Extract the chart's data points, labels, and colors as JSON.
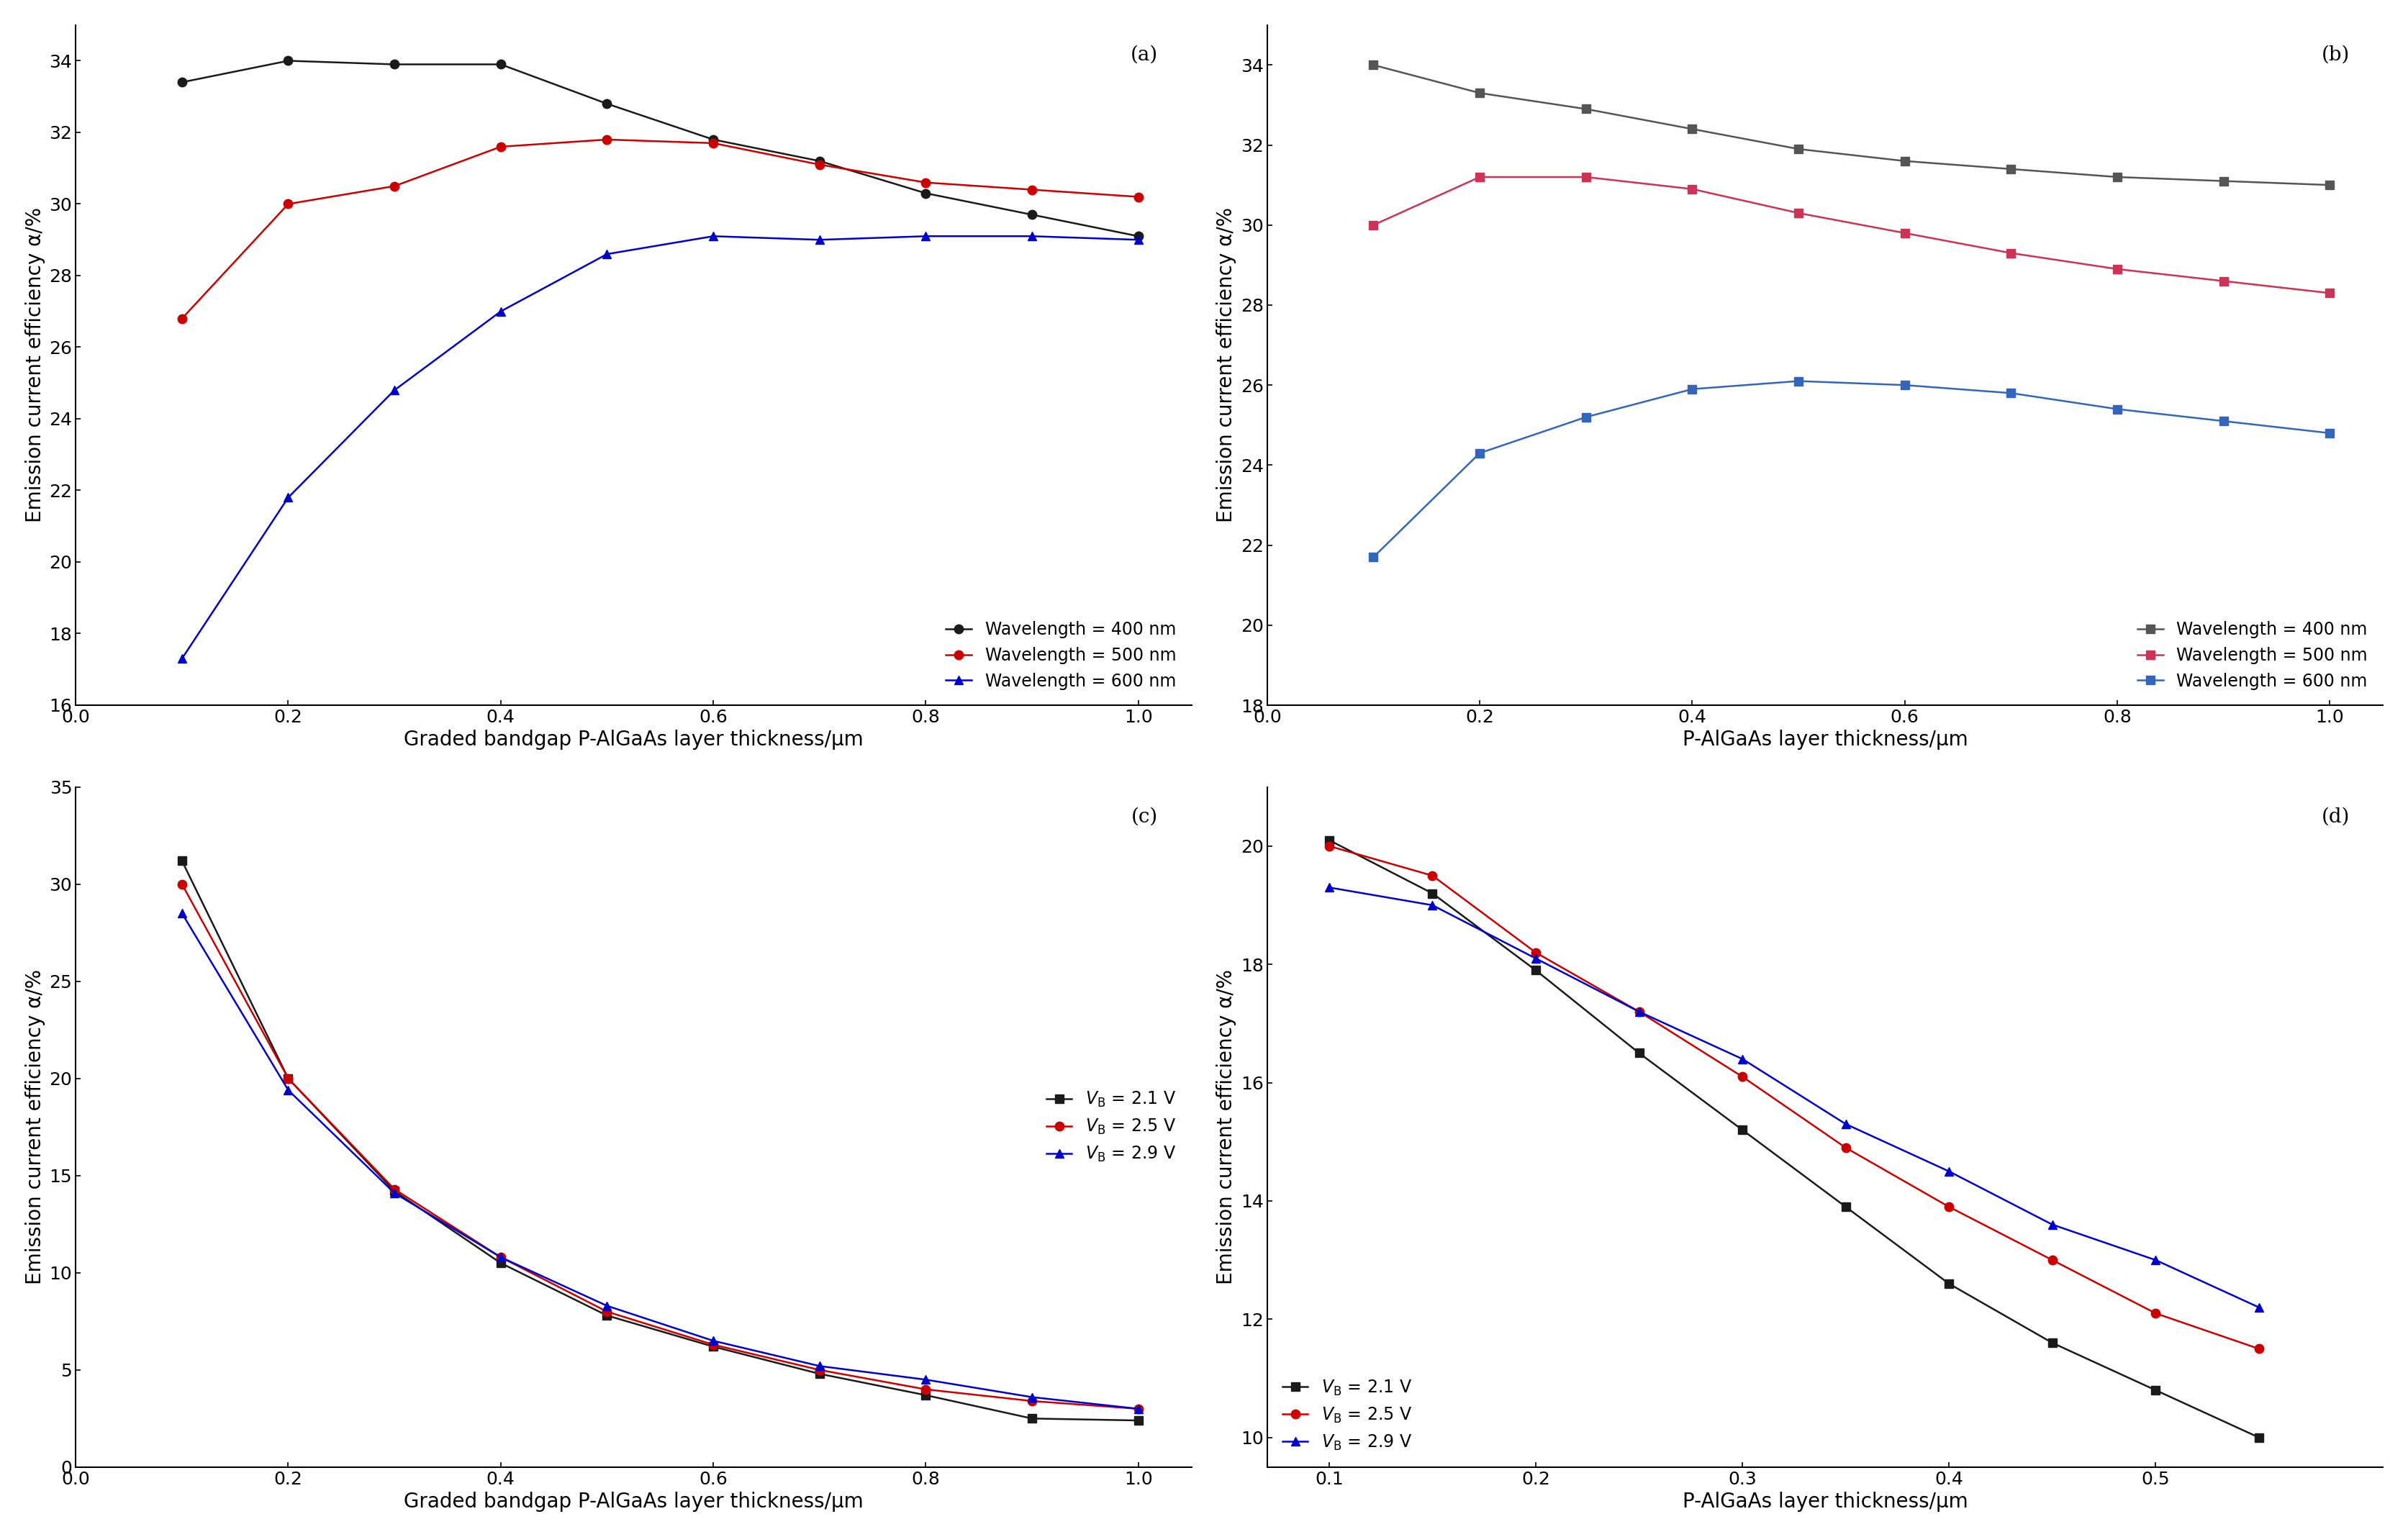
{
  "panel_a": {
    "title": "(a)",
    "xlabel": "Graded bandgap P-AlGaAs layer thickness/μm",
    "ylabel": "Emission current efficiency α/%",
    "xlim": [
      0,
      1.05
    ],
    "ylim": [
      16,
      35
    ],
    "xticks": [
      0.0,
      0.2,
      0.4,
      0.6,
      0.8,
      1.0
    ],
    "yticks": [
      16,
      18,
      20,
      22,
      24,
      26,
      28,
      30,
      32,
      34
    ],
    "legend_loc": "lower right",
    "series": [
      {
        "label": "Wavelength = 400 nm",
        "color": "#1a1a1a",
        "marker": "o",
        "x": [
          0.1,
          0.2,
          0.3,
          0.4,
          0.5,
          0.6,
          0.7,
          0.8,
          0.9,
          1.0
        ],
        "y": [
          33.4,
          34.0,
          33.9,
          33.9,
          32.8,
          31.8,
          31.2,
          30.3,
          29.7,
          29.1
        ]
      },
      {
        "label": "Wavelength = 500 nm",
        "color": "#cc0000",
        "marker": "o",
        "x": [
          0.1,
          0.2,
          0.3,
          0.4,
          0.5,
          0.6,
          0.7,
          0.8,
          0.9,
          1.0
        ],
        "y": [
          26.8,
          30.0,
          30.5,
          31.6,
          31.8,
          31.7,
          31.1,
          30.6,
          30.4,
          30.2
        ]
      },
      {
        "label": "Wavelength = 600 nm",
        "color": "#0000cc",
        "marker": "^",
        "x": [
          0.1,
          0.2,
          0.3,
          0.4,
          0.5,
          0.6,
          0.7,
          0.8,
          0.9,
          1.0
        ],
        "y": [
          17.3,
          21.8,
          24.8,
          27.0,
          28.6,
          29.1,
          29.0,
          29.1,
          29.1,
          29.0
        ]
      }
    ]
  },
  "panel_b": {
    "title": "(b)",
    "xlabel": "P-AlGaAs layer thickness/μm",
    "ylabel": "Emission current efficiency α/%",
    "xlim": [
      0,
      1.05
    ],
    "ylim": [
      18,
      35
    ],
    "xticks": [
      0.0,
      0.2,
      0.4,
      0.6,
      0.8,
      1.0
    ],
    "yticks": [
      18,
      20,
      22,
      24,
      26,
      28,
      30,
      32,
      34
    ],
    "legend_loc": "lower right",
    "series": [
      {
        "label": "Wavelength = 400 nm",
        "color": "#555555",
        "marker": "s",
        "x": [
          0.1,
          0.2,
          0.3,
          0.4,
          0.5,
          0.6,
          0.7,
          0.8,
          0.9,
          1.0
        ],
        "y": [
          34.0,
          33.3,
          32.9,
          32.4,
          31.9,
          31.6,
          31.4,
          31.2,
          31.1,
          31.0
        ]
      },
      {
        "label": "Wavelength = 500 nm",
        "color": "#cc3355",
        "marker": "s",
        "x": [
          0.1,
          0.2,
          0.3,
          0.4,
          0.5,
          0.6,
          0.7,
          0.8,
          0.9,
          1.0
        ],
        "y": [
          30.0,
          31.2,
          31.2,
          30.9,
          30.3,
          29.8,
          29.3,
          28.9,
          28.6,
          28.3
        ]
      },
      {
        "label": "Wavelength = 600 nm",
        "color": "#3366bb",
        "marker": "s",
        "x": [
          0.1,
          0.2,
          0.3,
          0.4,
          0.5,
          0.6,
          0.7,
          0.8,
          0.9,
          1.0
        ],
        "y": [
          21.7,
          24.3,
          25.2,
          25.9,
          26.1,
          26.0,
          25.8,
          25.4,
          25.1,
          24.8
        ]
      }
    ]
  },
  "panel_c": {
    "title": "(c)",
    "xlabel": "Graded bandgap P-AlGaAs layer thickness/μm",
    "ylabel": "Emission current efficiency α/%",
    "xlim": [
      0,
      1.05
    ],
    "ylim": [
      0,
      35
    ],
    "xticks": [
      0.0,
      0.2,
      0.4,
      0.6,
      0.8,
      1.0
    ],
    "yticks": [
      0,
      5,
      10,
      15,
      20,
      25,
      30,
      35
    ],
    "legend_loc": "center right",
    "series": [
      {
        "label": "VB_2.1",
        "color": "#1a1a1a",
        "marker": "s",
        "x": [
          0.1,
          0.2,
          0.3,
          0.4,
          0.5,
          0.6,
          0.7,
          0.8,
          0.9,
          1.0
        ],
        "y": [
          31.2,
          20.0,
          14.2,
          10.5,
          7.8,
          6.2,
          4.8,
          3.7,
          2.5,
          2.4
        ]
      },
      {
        "label": "VB_2.5",
        "color": "#cc0000",
        "marker": "o",
        "x": [
          0.1,
          0.2,
          0.3,
          0.4,
          0.5,
          0.6,
          0.7,
          0.8,
          0.9,
          1.0
        ],
        "y": [
          30.0,
          20.0,
          14.3,
          10.8,
          8.0,
          6.3,
          5.0,
          4.0,
          3.4,
          3.0
        ]
      },
      {
        "label": "VB_2.9",
        "color": "#0000cc",
        "marker": "^",
        "x": [
          0.1,
          0.2,
          0.3,
          0.4,
          0.5,
          0.6,
          0.7,
          0.8,
          0.9,
          1.0
        ],
        "y": [
          28.5,
          19.4,
          14.1,
          10.8,
          8.3,
          6.5,
          5.2,
          4.5,
          3.6,
          3.0
        ]
      }
    ]
  },
  "panel_d": {
    "title": "(d)",
    "xlabel": "P-AlGaAs layer thickness/μm",
    "ylabel": "Emission current efficiency α/%",
    "xlim": [
      0.07,
      0.61
    ],
    "ylim": [
      9.5,
      21
    ],
    "xticks": [
      0.1,
      0.2,
      0.3,
      0.4,
      0.5
    ],
    "yticks": [
      10,
      12,
      14,
      16,
      18,
      20
    ],
    "legend_loc": "lower left",
    "series": [
      {
        "label": "VB_2.1",
        "color": "#1a1a1a",
        "marker": "s",
        "x": [
          0.1,
          0.15,
          0.2,
          0.25,
          0.3,
          0.35,
          0.4,
          0.45,
          0.5,
          0.55
        ],
        "y": [
          20.1,
          19.2,
          17.9,
          16.5,
          15.2,
          13.9,
          12.6,
          11.6,
          10.8,
          10.0
        ]
      },
      {
        "label": "VB_2.5",
        "color": "#cc0000",
        "marker": "o",
        "x": [
          0.1,
          0.15,
          0.2,
          0.25,
          0.3,
          0.35,
          0.4,
          0.45,
          0.5,
          0.55
        ],
        "y": [
          20.0,
          19.5,
          18.2,
          17.2,
          16.1,
          14.9,
          13.9,
          13.0,
          12.1,
          11.5
        ]
      },
      {
        "label": "VB_2.9",
        "color": "#0000cc",
        "marker": "^",
        "x": [
          0.1,
          0.15,
          0.2,
          0.25,
          0.3,
          0.35,
          0.4,
          0.45,
          0.5,
          0.55
        ],
        "y": [
          19.3,
          19.0,
          18.1,
          17.2,
          16.4,
          15.3,
          14.5,
          13.6,
          13.0,
          12.2
        ]
      }
    ]
  },
  "background_color": "#ffffff",
  "linewidth": 1.8,
  "markersize": 9,
  "fontsize_label": 20,
  "fontsize_tick": 18,
  "fontsize_legend": 17,
  "fontsize_panel": 20
}
